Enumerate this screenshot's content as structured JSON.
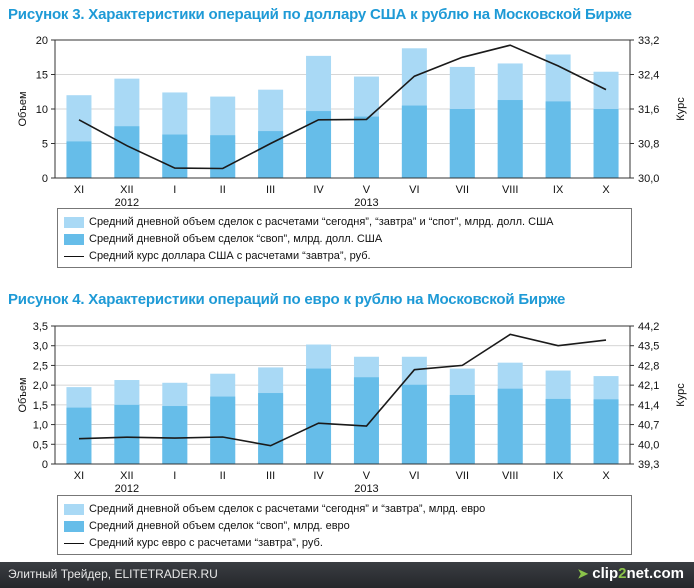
{
  "chart_data": [
    {
      "type": "bar",
      "title": "Рисунок 3. Характеристики операций по доллару США к рублю на Московской Бирже",
      "categories": [
        "XI",
        "XII",
        "I",
        "II",
        "III",
        "IV",
        "V",
        "VI",
        "VII",
        "VIII",
        "IX",
        "X"
      ],
      "year_labels": [
        {
          "label": "2012",
          "at": "XII"
        },
        {
          "label": "2013",
          "at": "V"
        }
      ],
      "ylabel": "Объем",
      "y2label": "Курс",
      "ylim": [
        0,
        20
      ],
      "yticks": [
        "0",
        "5",
        "10",
        "15",
        "20"
      ],
      "y2lim": [
        30.0,
        33.2
      ],
      "y2ticks": [
        "30,0",
        "30,8",
        "31,6",
        "32,4",
        "33,2"
      ],
      "series": [
        {
          "name": "Средний дневной объем сделок с расчетами “сегодня”, “завтра” и “спот”, млрд. долл. США",
          "kind": "bar",
          "values": [
            12.0,
            14.4,
            12.4,
            11.8,
            12.8,
            17.7,
            14.7,
            18.8,
            16.1,
            16.6,
            17.9,
            15.4
          ]
        },
        {
          "name": "Средний дневной объем сделок “своп”, млрд. долл. США",
          "kind": "bar",
          "values": [
            5.3,
            7.5,
            6.3,
            6.2,
            6.8,
            9.7,
            8.9,
            10.5,
            10.0,
            11.3,
            11.1,
            10.0
          ]
        },
        {
          "name": "Средний курс доллара США с расчетами “завтра”, руб.",
          "kind": "line",
          "axis": "right",
          "values": [
            31.35,
            30.75,
            30.23,
            30.22,
            30.8,
            31.35,
            31.36,
            32.36,
            32.8,
            33.08,
            32.6,
            32.05
          ]
        }
      ],
      "grid": true,
      "legend_placement": "bottom"
    },
    {
      "type": "bar",
      "title": "Рисунок 4. Характеристики операций по евро к рублю на Московской Бирже",
      "categories": [
        "XI",
        "XII",
        "I",
        "II",
        "III",
        "IV",
        "V",
        "VI",
        "VII",
        "VIII",
        "IX",
        "X"
      ],
      "year_labels": [
        {
          "label": "2012",
          "at": "XII"
        },
        {
          "label": "2013",
          "at": "V"
        }
      ],
      "ylabel": "Объем",
      "y2label": "Курс",
      "ylim": [
        0,
        3.5
      ],
      "yticks": [
        "0",
        "0,5",
        "1,0",
        "1,5",
        "2,0",
        "2,5",
        "3,0",
        "3,5"
      ],
      "y2lim": [
        39.3,
        44.2
      ],
      "y2ticks": [
        "39,3",
        "40,0",
        "40,7",
        "41,4",
        "42,1",
        "42,8",
        "43,5",
        "44,2"
      ],
      "series": [
        {
          "name": "Средний дневной объем сделок с расчетами “сегодня” и “завтра”, млрд. евро",
          "kind": "bar",
          "values": [
            1.95,
            2.13,
            2.06,
            2.29,
            2.45,
            3.03,
            2.72,
            2.72,
            2.42,
            2.57,
            2.37,
            2.23
          ]
        },
        {
          "name": "Средний дневной объем сделок “своп”, млрд. евро",
          "kind": "bar",
          "values": [
            1.43,
            1.5,
            1.47,
            1.71,
            1.8,
            2.42,
            2.2,
            2.01,
            1.75,
            1.91,
            1.65,
            1.64
          ]
        },
        {
          "name": "Средний курс евро с расчетами “завтра”, руб.",
          "kind": "line",
          "axis": "right",
          "values": [
            40.2,
            40.25,
            40.22,
            40.26,
            39.95,
            40.75,
            40.65,
            42.65,
            42.8,
            43.9,
            43.5,
            43.7
          ]
        }
      ],
      "grid": true,
      "legend_placement": "bottom"
    }
  ],
  "colors": {
    "title": "#1e9ad6",
    "bar_total": "#a9d9f5",
    "bar_swap": "#66bde9",
    "line": "#1a1a1a",
    "grid": "#c8c8c8",
    "axis": "#333333"
  },
  "footer": {
    "text": "Элитный Трейдер, ELITETRADER.RU",
    "logo_left": "clip",
    "logo_mid": "2",
    "logo_right": "net.com",
    "logo_icon": "arrow-icon"
  }
}
